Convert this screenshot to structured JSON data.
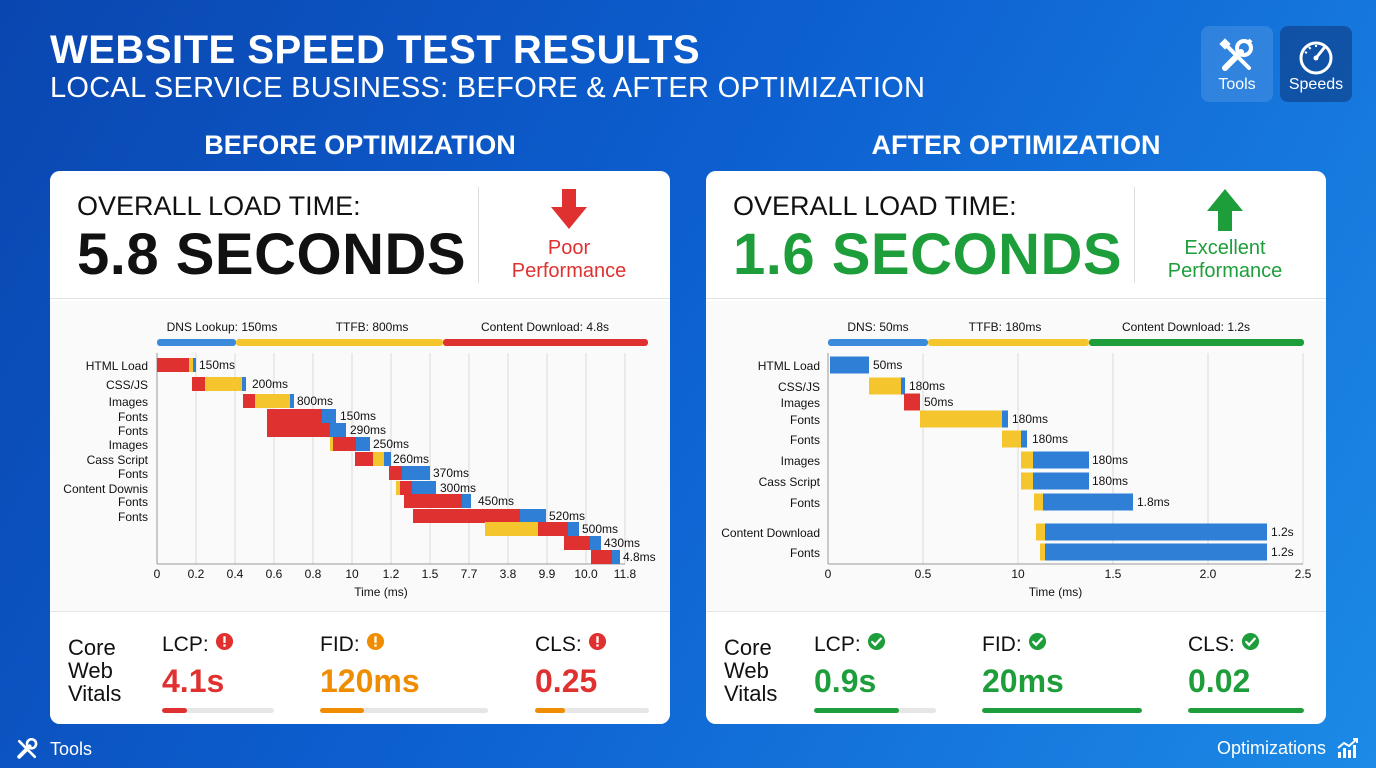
{
  "header": {
    "title": "WEBSITE SPEED TEST RESULTS",
    "subtitle": "LOCAL SERVICE BUSINESS: BEFORE & AFTER OPTIMIZATION",
    "tools_label": "Tools",
    "speeds_label": "Speeds"
  },
  "colors": {
    "red": "#e03131",
    "green": "#1e9e3a",
    "orange": "#f08c00",
    "blue": "#2f7fd6",
    "yellow": "#f4c52d"
  },
  "before": {
    "heading": "BEFORE OPTIMIZATION",
    "load_label": "OVERALL LOAD TIME:",
    "load_value": "5.8 SECONDS",
    "perf_line1": "Poor",
    "perf_line2": "Performance",
    "phases": [
      "DNS Lookup: 150ms",
      "TTFB: 800ms",
      "Content Download: 4.8s"
    ],
    "xlabel": "Time (ms)",
    "ticks": [
      "0",
      "0.2",
      "0.4",
      "0.6",
      "0.8",
      "10",
      "1.2",
      "1.5",
      "7.7",
      "3.8",
      "9.9",
      "10.0",
      "11.8"
    ],
    "rows": [
      {
        "label": "HTML Load",
        "value": "150ms"
      },
      {
        "label": "CSS/JS",
        "value": "200ms"
      },
      {
        "label": "Images",
        "value": "800ms"
      },
      {
        "label": "Fonts",
        "value": "150ms"
      },
      {
        "label": "Fonts",
        "value": "290ms"
      },
      {
        "label": "Images",
        "value": "250ms"
      },
      {
        "label": "Cass Script",
        "value": "260ms"
      },
      {
        "label": "Fonts",
        "value": "370ms"
      },
      {
        "label": "Content Downis",
        "value": "300ms"
      },
      {
        "label": "Fonts",
        "value": "450ms"
      },
      {
        "label": "Fonts",
        "value": "520ms"
      },
      {
        "label": "",
        "value": "500ms"
      },
      {
        "label": "",
        "value": "430ms"
      },
      {
        "label": "",
        "value": "4.8ms"
      }
    ],
    "cwv_title": [
      "Core",
      "Web",
      "Vitals"
    ],
    "metrics": [
      {
        "label": "LCP:",
        "value": "4.1s",
        "status": "bad",
        "color": "#e03131",
        "fill": 0.22
      },
      {
        "label": "FID:",
        "value": "120ms",
        "status": "warn",
        "color": "#f08c00",
        "fill": 0.26
      },
      {
        "label": "CLS:",
        "value": "0.25",
        "status": "bad",
        "color": "#f08c00",
        "fill": 0.26
      }
    ]
  },
  "after": {
    "heading": "AFTER OPTIMIZATION",
    "load_label": "OVERALL LOAD TIME:",
    "load_value": "1.6 SECONDS",
    "perf_line1": "Excellent",
    "perf_line2": "Performance",
    "phases": [
      "DNS: 50ms",
      "TTFB: 180ms",
      "Content Download: 1.2s"
    ],
    "xlabel": "Time (ms)",
    "ticks": [
      "0",
      "0.5",
      "10",
      "1.5",
      "2.0",
      "2.5"
    ],
    "rows": [
      {
        "label": "HTML Load",
        "value": "50ms"
      },
      {
        "label": "CSS/JS",
        "value": "180ms"
      },
      {
        "label": "Images",
        "value": "50ms"
      },
      {
        "label": "Fonts",
        "value": "180ms"
      },
      {
        "label": "Fonts",
        "value": "180ms"
      },
      {
        "label": "Images",
        "value": "180ms"
      },
      {
        "label": "Cass Script",
        "value": "180ms"
      },
      {
        "label": "Fonts",
        "value": "1.8ms"
      },
      {
        "label": "Content Download",
        "value": "1.2s"
      },
      {
        "label": "Fonts",
        "value": "1.2s"
      }
    ],
    "cwv_title": [
      "Core",
      "Web",
      "Vitals"
    ],
    "metrics": [
      {
        "label": "LCP:",
        "value": "0.9s",
        "status": "good",
        "color": "#1e9e3a",
        "fill": 0.7
      },
      {
        "label": "FID:",
        "value": "20ms",
        "status": "good",
        "color": "#1e9e3a",
        "fill": 1.0
      },
      {
        "label": "CLS:",
        "value": "0.02",
        "status": "good",
        "color": "#1e9e3a",
        "fill": 1.0
      }
    ]
  },
  "footer": {
    "left_label": "Tools",
    "right_label": "Optimizations"
  }
}
